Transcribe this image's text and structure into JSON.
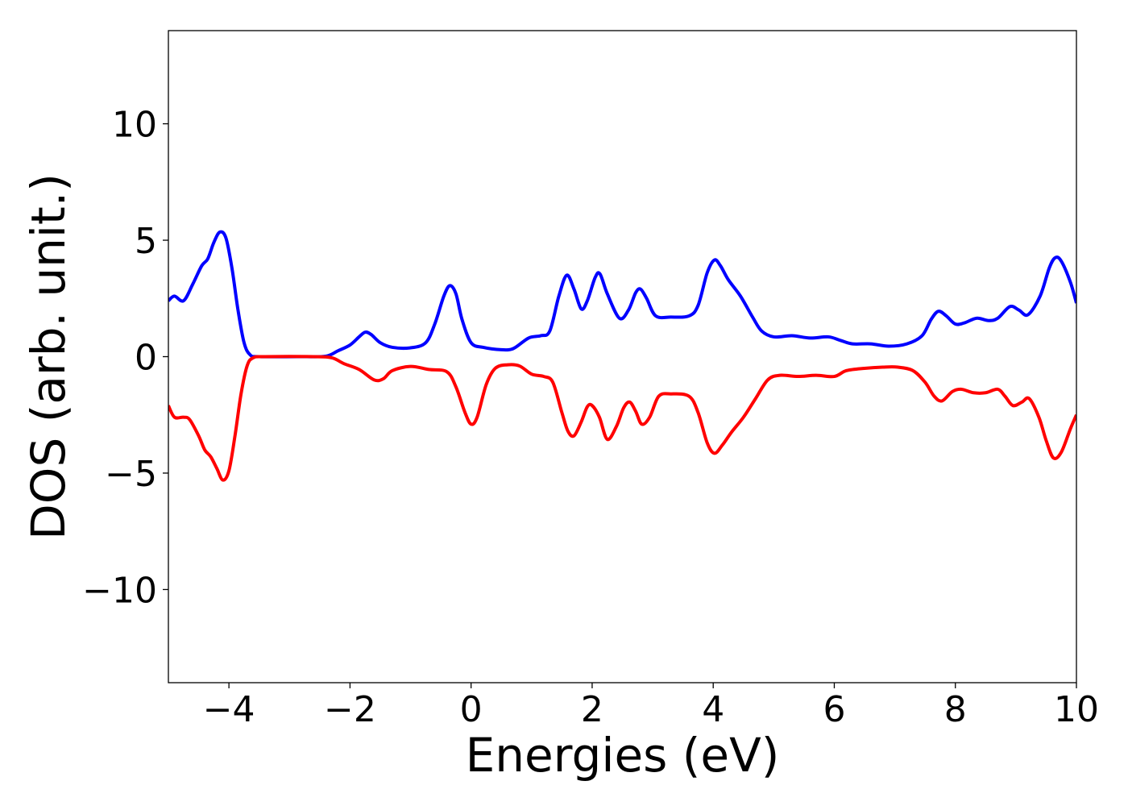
{
  "chart_data": {
    "type": "line",
    "title": "",
    "xlabel": "Energies (eV)",
    "ylabel": "DOS (arb. unit.)",
    "xlim": [
      -5,
      10
    ],
    "ylim": [
      -14,
      14
    ],
    "grid": false,
    "legend": "none",
    "x_ticks": [
      -4,
      -2,
      0,
      2,
      4,
      6,
      8,
      10
    ],
    "x_tick_labels": [
      "−4",
      "−2",
      "0",
      "2",
      "4",
      "6",
      "8",
      "10"
    ],
    "y_ticks": [
      -10,
      -5,
      0,
      5,
      10
    ],
    "y_tick_labels": [
      "−10",
      "−5",
      "0",
      "5",
      "10"
    ],
    "series": [
      {
        "color": "#0000ff",
        "points": [
          [
            -5.0,
            2.4
          ],
          [
            -4.9,
            2.6
          ],
          [
            -4.75,
            2.4
          ],
          [
            -4.6,
            3.1
          ],
          [
            -4.45,
            3.9
          ],
          [
            -4.35,
            4.2
          ],
          [
            -4.25,
            4.9
          ],
          [
            -4.15,
            5.35
          ],
          [
            -4.05,
            5.1
          ],
          [
            -3.95,
            3.8
          ],
          [
            -3.85,
            2.0
          ],
          [
            -3.75,
            0.6
          ],
          [
            -3.65,
            0.08
          ],
          [
            -3.5,
            0.0
          ],
          [
            -2.8,
            0.0
          ],
          [
            -2.4,
            0.02
          ],
          [
            -2.2,
            0.25
          ],
          [
            -2.0,
            0.5
          ],
          [
            -1.85,
            0.85
          ],
          [
            -1.75,
            1.05
          ],
          [
            -1.65,
            0.95
          ],
          [
            -1.5,
            0.6
          ],
          [
            -1.3,
            0.4
          ],
          [
            -1.0,
            0.38
          ],
          [
            -0.75,
            0.6
          ],
          [
            -0.6,
            1.4
          ],
          [
            -0.45,
            2.6
          ],
          [
            -0.35,
            3.05
          ],
          [
            -0.25,
            2.7
          ],
          [
            -0.15,
            1.6
          ],
          [
            0.0,
            0.6
          ],
          [
            0.2,
            0.4
          ],
          [
            0.5,
            0.3
          ],
          [
            0.7,
            0.35
          ],
          [
            0.95,
            0.8
          ],
          [
            1.15,
            0.9
          ],
          [
            1.3,
            1.1
          ],
          [
            1.45,
            2.6
          ],
          [
            1.58,
            3.5
          ],
          [
            1.7,
            2.9
          ],
          [
            1.82,
            2.05
          ],
          [
            1.92,
            2.4
          ],
          [
            2.05,
            3.4
          ],
          [
            2.13,
            3.55
          ],
          [
            2.25,
            2.7
          ],
          [
            2.45,
            1.65
          ],
          [
            2.6,
            2.0
          ],
          [
            2.72,
            2.75
          ],
          [
            2.8,
            2.9
          ],
          [
            2.9,
            2.5
          ],
          [
            3.05,
            1.75
          ],
          [
            3.3,
            1.7
          ],
          [
            3.6,
            1.75
          ],
          [
            3.75,
            2.2
          ],
          [
            3.9,
            3.6
          ],
          [
            4.02,
            4.15
          ],
          [
            4.12,
            3.9
          ],
          [
            4.25,
            3.3
          ],
          [
            4.45,
            2.6
          ],
          [
            4.65,
            1.7
          ],
          [
            4.8,
            1.1
          ],
          [
            5.0,
            0.85
          ],
          [
            5.3,
            0.9
          ],
          [
            5.6,
            0.8
          ],
          [
            5.9,
            0.85
          ],
          [
            6.1,
            0.7
          ],
          [
            6.3,
            0.55
          ],
          [
            6.6,
            0.55
          ],
          [
            6.9,
            0.45
          ],
          [
            7.2,
            0.55
          ],
          [
            7.45,
            0.9
          ],
          [
            7.6,
            1.6
          ],
          [
            7.72,
            1.95
          ],
          [
            7.85,
            1.75
          ],
          [
            8.0,
            1.4
          ],
          [
            8.15,
            1.45
          ],
          [
            8.35,
            1.65
          ],
          [
            8.55,
            1.55
          ],
          [
            8.7,
            1.65
          ],
          [
            8.9,
            2.15
          ],
          [
            9.05,
            2.0
          ],
          [
            9.2,
            1.8
          ],
          [
            9.4,
            2.6
          ],
          [
            9.55,
            3.8
          ],
          [
            9.65,
            4.25
          ],
          [
            9.75,
            4.1
          ],
          [
            9.9,
            3.2
          ],
          [
            10.0,
            2.3
          ]
        ]
      },
      {
        "color": "#ff0000",
        "points": [
          [
            -5.0,
            -2.1
          ],
          [
            -4.9,
            -2.6
          ],
          [
            -4.75,
            -2.6
          ],
          [
            -4.65,
            -2.7
          ],
          [
            -4.5,
            -3.4
          ],
          [
            -4.4,
            -4.0
          ],
          [
            -4.3,
            -4.3
          ],
          [
            -4.2,
            -4.8
          ],
          [
            -4.1,
            -5.3
          ],
          [
            -4.0,
            -4.9
          ],
          [
            -3.9,
            -3.4
          ],
          [
            -3.8,
            -1.6
          ],
          [
            -3.7,
            -0.4
          ],
          [
            -3.6,
            -0.05
          ],
          [
            -3.4,
            0.0
          ],
          [
            -2.6,
            0.0
          ],
          [
            -2.3,
            -0.05
          ],
          [
            -2.1,
            -0.3
          ],
          [
            -1.85,
            -0.55
          ],
          [
            -1.6,
            -1.0
          ],
          [
            -1.45,
            -0.95
          ],
          [
            -1.3,
            -0.6
          ],
          [
            -1.0,
            -0.42
          ],
          [
            -0.7,
            -0.55
          ],
          [
            -0.4,
            -0.65
          ],
          [
            -0.25,
            -1.3
          ],
          [
            -0.1,
            -2.4
          ],
          [
            0.0,
            -2.9
          ],
          [
            0.1,
            -2.6
          ],
          [
            0.25,
            -1.2
          ],
          [
            0.4,
            -0.5
          ],
          [
            0.6,
            -0.35
          ],
          [
            0.8,
            -0.4
          ],
          [
            1.0,
            -0.75
          ],
          [
            1.2,
            -0.85
          ],
          [
            1.35,
            -1.1
          ],
          [
            1.5,
            -2.4
          ],
          [
            1.6,
            -3.2
          ],
          [
            1.7,
            -3.4
          ],
          [
            1.82,
            -2.8
          ],
          [
            1.92,
            -2.15
          ],
          [
            2.0,
            -2.1
          ],
          [
            2.12,
            -2.6
          ],
          [
            2.25,
            -3.55
          ],
          [
            2.4,
            -3.0
          ],
          [
            2.52,
            -2.2
          ],
          [
            2.62,
            -1.95
          ],
          [
            2.72,
            -2.35
          ],
          [
            2.82,
            -2.9
          ],
          [
            2.95,
            -2.6
          ],
          [
            3.1,
            -1.7
          ],
          [
            3.3,
            -1.6
          ],
          [
            3.6,
            -1.7
          ],
          [
            3.75,
            -2.4
          ],
          [
            3.9,
            -3.7
          ],
          [
            4.02,
            -4.15
          ],
          [
            4.15,
            -3.8
          ],
          [
            4.3,
            -3.25
          ],
          [
            4.5,
            -2.6
          ],
          [
            4.7,
            -1.8
          ],
          [
            4.9,
            -1.0
          ],
          [
            5.1,
            -0.8
          ],
          [
            5.4,
            -0.85
          ],
          [
            5.7,
            -0.8
          ],
          [
            6.0,
            -0.85
          ],
          [
            6.2,
            -0.6
          ],
          [
            6.5,
            -0.5
          ],
          [
            6.8,
            -0.45
          ],
          [
            7.05,
            -0.45
          ],
          [
            7.3,
            -0.6
          ],
          [
            7.5,
            -1.1
          ],
          [
            7.65,
            -1.7
          ],
          [
            7.78,
            -1.9
          ],
          [
            7.95,
            -1.5
          ],
          [
            8.1,
            -1.4
          ],
          [
            8.3,
            -1.55
          ],
          [
            8.5,
            -1.55
          ],
          [
            8.7,
            -1.4
          ],
          [
            8.82,
            -1.7
          ],
          [
            8.95,
            -2.1
          ],
          [
            9.1,
            -1.95
          ],
          [
            9.22,
            -1.8
          ],
          [
            9.38,
            -2.6
          ],
          [
            9.5,
            -3.6
          ],
          [
            9.62,
            -4.35
          ],
          [
            9.75,
            -4.1
          ],
          [
            9.9,
            -3.1
          ],
          [
            10.0,
            -2.5
          ]
        ]
      }
    ]
  }
}
